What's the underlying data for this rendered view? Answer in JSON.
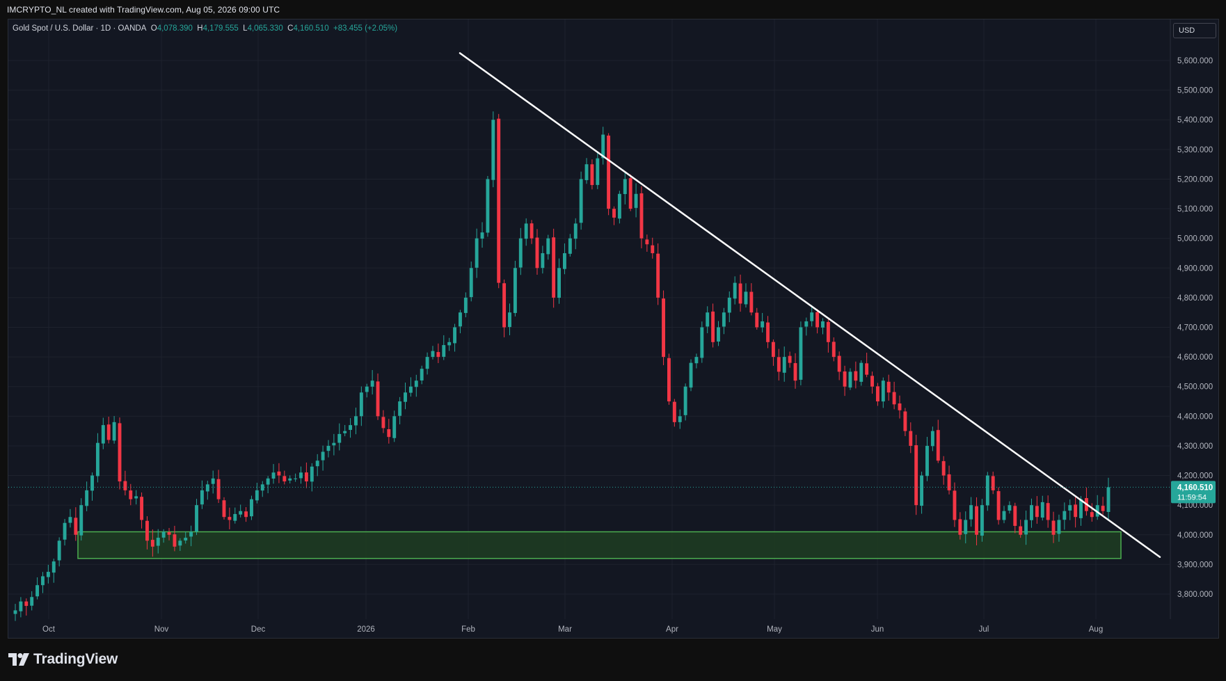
{
  "header": {
    "credit": "IMCRYPTO_NL created with TradingView.com, Aug 05, 2026 09:00 UTC"
  },
  "legend": {
    "symbol": "Gold Spot / U.S. Dollar · 1D · OANDA",
    "o_label": "O",
    "o_value": "4,078.390",
    "h_label": "H",
    "h_value": "4,179.555",
    "l_label": "L",
    "l_value": "4,065.330",
    "c_label": "C",
    "c_value": "4,160.510",
    "change": "+83.455 (+2.05%)"
  },
  "currency_button": {
    "label": "USD"
  },
  "branding": {
    "name": "TradingView",
    "logo_icon": "tradingview-logo-icon"
  },
  "colors": {
    "up": "#26a69a",
    "down": "#f23645",
    "trendline": "#ffffff",
    "zone_border": "#4caf50",
    "zone_fill": "#1e3d22",
    "background": "#131722",
    "grid": "#1e222d"
  },
  "price_label": {
    "price": "4,160.510",
    "countdown": "11:59:54"
  },
  "chart_data": {
    "type": "candlestick",
    "x_axis": {
      "ticks": [
        "Oct",
        "Nov",
        "Dec",
        "2026",
        "Feb",
        "Mar",
        "Apr",
        "May",
        "Jun",
        "Jul",
        "Aug"
      ]
    },
    "y_axis": {
      "ticks": [
        "3,800.000",
        "3,900.000",
        "4,000.000",
        "4,100.000",
        "4,200.000",
        "4,300.000",
        "4,400.000",
        "4,500.000",
        "4,600.000",
        "4,700.000",
        "4,800.000",
        "4,900.000",
        "5,000.000",
        "5,100.000",
        "5,200.000",
        "5,300.000",
        "5,400.000",
        "5,500.000",
        "5,600.000"
      ],
      "range": [
        3720,
        5690
      ]
    },
    "grid": true,
    "last_price": 4160.51,
    "support_zone": {
      "low": 3920,
      "high": 4010,
      "start": "Oct",
      "end": "Aug"
    },
    "trendline": {
      "start_price": 5625,
      "end_price": 3925,
      "start": "Feb",
      "end": "Aug"
    },
    "closes": [
      3745,
      3775,
      3760,
      3790,
      3830,
      3860,
      3875,
      3910,
      3980,
      4040,
      4060,
      4000,
      4100,
      4150,
      4200,
      4310,
      4370,
      4320,
      4380,
      4180,
      4150,
      4120,
      4130,
      4050,
      3980,
      3960,
      3990,
      4010,
      4000,
      3960,
      3980,
      3990,
      4010,
      4100,
      4150,
      4170,
      4190,
      4120,
      4060,
      4050,
      4070,
      4080,
      4060,
      4120,
      4150,
      4170,
      4190,
      4210,
      4200,
      4180,
      4190,
      4190,
      4210,
      4180,
      4230,
      4250,
      4280,
      4300,
      4310,
      4340,
      4350,
      4370,
      4400,
      4480,
      4500,
      4520,
      4400,
      4360,
      4330,
      4400,
      4450,
      4480,
      4500,
      4520,
      4560,
      4600,
      4620,
      4600,
      4640,
      4650,
      4700,
      4750,
      4800,
      4900,
      5000,
      5020,
      5200,
      5400,
      4850,
      4700,
      4750,
      4900,
      5000,
      5050,
      5000,
      4900,
      4950,
      5000,
      4800,
      4900,
      4950,
      5000,
      5050,
      5200,
      5250,
      5180,
      5270,
      5350,
      5100,
      5070,
      5150,
      5200,
      5100,
      5150,
      5000,
      4980,
      4950,
      4800,
      4600,
      4450,
      4380,
      4400,
      4500,
      4580,
      4600,
      4700,
      4750,
      4650,
      4700,
      4750,
      4800,
      4850,
      4780,
      4820,
      4750,
      4700,
      4720,
      4650,
      4600,
      4550,
      4600,
      4580,
      4520,
      4700,
      4720,
      4750,
      4700,
      4720,
      4650,
      4600,
      4550,
      4500,
      4550,
      4520,
      4580,
      4540,
      4500,
      4450,
      4520,
      4480,
      4440,
      4420,
      4350,
      4300,
      4100,
      4200,
      4300,
      4350,
      4250,
      4200,
      4150,
      4050,
      4000,
      4050,
      4100,
      4000,
      4100,
      4200,
      4150,
      4050,
      4080,
      4100,
      4030,
      4000,
      4050,
      4100,
      4060,
      4110,
      4050,
      4000,
      4050,
      4080,
      4100,
      4060,
      4120,
      4080,
      4060,
      4100,
      4080,
      4160.51
    ]
  }
}
